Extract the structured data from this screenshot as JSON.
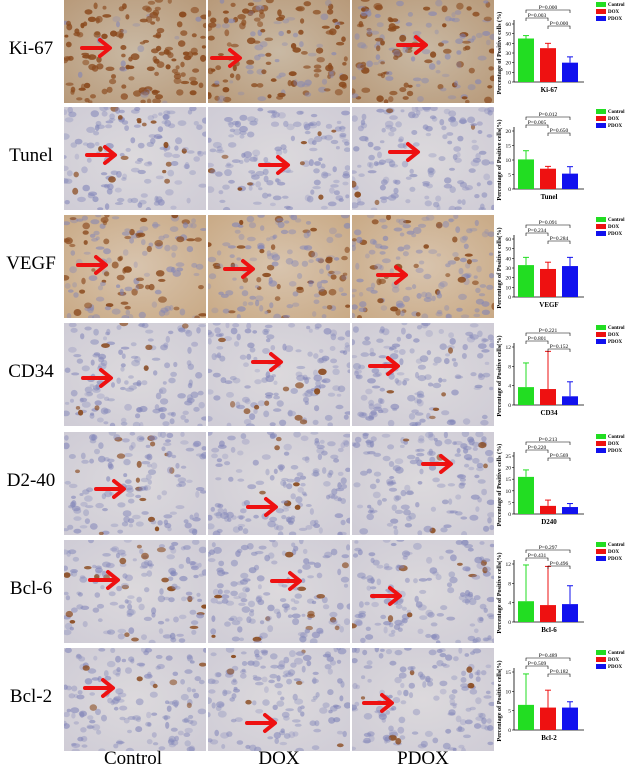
{
  "columns": [
    "Control",
    "DOX",
    "PDOX"
  ],
  "rows": [
    {
      "label": "Ki-67",
      "stain": "strong"
    },
    {
      "label": "Tunel",
      "stain": "light"
    },
    {
      "label": "VEGF",
      "stain": "diffuse"
    },
    {
      "label": "CD34",
      "stain": "light"
    },
    {
      "label": "D2-40",
      "stain": "light"
    },
    {
      "label": "Bcl-6",
      "stain": "light"
    },
    {
      "label": "Bcl-2",
      "stain": "light"
    }
  ],
  "colors": {
    "control": "#22dd22",
    "dox": "#ee1111",
    "pdox": "#1111ee",
    "arrow": "#ee1111",
    "hematoxylin": "#7f83b8",
    "dab": "#8a4a1e"
  },
  "chart_data": [
    {
      "type": "bar",
      "title": "Ki-67",
      "ylabel": "Percentage of Positive cells (%)",
      "categories": [
        "Control",
        "DOX",
        "PDOX"
      ],
      "values": [
        45,
        35,
        20
      ],
      "errors": [
        3,
        5,
        6
      ],
      "ylim": [
        0,
        60
      ],
      "yticks": [
        "0",
        "10",
        "20",
        "30",
        "40",
        "50",
        "60"
      ],
      "legend": [
        "Control",
        "DOX",
        "PDOX"
      ],
      "comparisons": [
        {
          "from": 0,
          "to": 2,
          "label": "P=0.000"
        },
        {
          "from": 0,
          "to": 1,
          "label": "P=0.003"
        },
        {
          "from": 1,
          "to": 2,
          "label": "P=0.000"
        }
      ]
    },
    {
      "type": "bar",
      "title": "Tunel",
      "ylabel": "Percentage of Positive cells(%)",
      "categories": [
        "Control",
        "DOX",
        "PDOX"
      ],
      "values": [
        10.2,
        7.0,
        5.3
      ],
      "errors": [
        3.0,
        0.8,
        2.4
      ],
      "ylim": [
        0,
        20
      ],
      "yticks": [
        "0",
        "5",
        "10",
        "15",
        "20"
      ],
      "legend": [
        "Control",
        "DOX",
        "PDOX"
      ],
      "comparisons": [
        {
          "from": 0,
          "to": 2,
          "label": "P=0.012"
        },
        {
          "from": 0,
          "to": 1,
          "label": "P=0.005"
        },
        {
          "from": 1,
          "to": 2,
          "label": "P=0.650"
        }
      ]
    },
    {
      "type": "bar",
      "title": "VEGF",
      "ylabel": "Percentage of Positive cells(%)",
      "categories": [
        "Control",
        "DOX",
        "PDOX"
      ],
      "values": [
        33,
        29,
        32
      ],
      "errors": [
        8,
        7,
        9
      ],
      "ylim": [
        0,
        60
      ],
      "yticks": [
        "0",
        "10",
        "20",
        "30",
        "40",
        "50",
        "60"
      ],
      "legend": [
        "Control",
        "DOX",
        "PDOX"
      ],
      "comparisons": [
        {
          "from": 0,
          "to": 2,
          "label": "P=0.091"
        },
        {
          "from": 0,
          "to": 1,
          "label": "P=0.234"
        },
        {
          "from": 1,
          "to": 2,
          "label": "P=0.284"
        }
      ]
    },
    {
      "type": "bar",
      "title": "CD34",
      "ylabel": "Percentage of Positive cells(%)",
      "categories": [
        "Control",
        "DOX",
        "PDOX"
      ],
      "values": [
        3.7,
        3.3,
        1.8
      ],
      "errors": [
        5,
        7.8,
        3
      ],
      "ylim": [
        0,
        12
      ],
      "yticks": [
        "0",
        "4",
        "8",
        "12"
      ],
      "legend": [
        "Control",
        "DOX",
        "PDOX"
      ],
      "comparisons": [
        {
          "from": 0,
          "to": 2,
          "label": "P=0.221"
        },
        {
          "from": 0,
          "to": 1,
          "label": "P=0.801"
        },
        {
          "from": 1,
          "to": 2,
          "label": "P=0.152"
        }
      ]
    },
    {
      "type": "bar",
      "title": "D240",
      "ylabel": "Percentage of Positive cells (%)",
      "categories": [
        "Control",
        "DOX",
        "PDOX"
      ],
      "values": [
        16,
        3.5,
        3
      ],
      "errors": [
        3,
        2.5,
        1.5
      ],
      "ylim": [
        0,
        25
      ],
      "yticks": [
        "0",
        "5",
        "10",
        "15",
        "20",
        "25"
      ],
      "legend": [
        "Control",
        "DOX",
        "PDOX"
      ],
      "comparisons": [
        {
          "from": 0,
          "to": 2,
          "label": "P=0.213"
        },
        {
          "from": 0,
          "to": 1,
          "label": "P=0.220"
        },
        {
          "from": 1,
          "to": 2,
          "label": "P=0.569"
        }
      ]
    },
    {
      "type": "bar",
      "title": "Bcl-6",
      "ylabel": "Percentage of Positive cells(%)",
      "categories": [
        "Control",
        "DOX",
        "PDOX"
      ],
      "values": [
        4.3,
        3.5,
        3.7
      ],
      "errors": [
        7.5,
        8,
        3.8
      ],
      "ylim": [
        0,
        12
      ],
      "yticks": [
        "0",
        "4",
        "8",
        "12"
      ],
      "legend": [
        "Control",
        "DOX",
        "PDOX"
      ],
      "comparisons": [
        {
          "from": 0,
          "to": 2,
          "label": "P=0.297"
        },
        {
          "from": 0,
          "to": 1,
          "label": "P=0.431"
        },
        {
          "from": 1,
          "to": 2,
          "label": "P=0.496"
        }
      ]
    },
    {
      "type": "bar",
      "title": "Bcl-2",
      "ylabel": "Percentage of Positive cells(%)",
      "categories": [
        "Control",
        "DOX",
        "PDOX"
      ],
      "values": [
        6.5,
        5.8,
        5.8
      ],
      "errors": [
        8,
        4.5,
        1.5
      ],
      "ylim": [
        0,
        15
      ],
      "yticks": [
        "0",
        "5",
        "10",
        "15"
      ],
      "legend": [
        "Control",
        "DOX",
        "PDOX"
      ],
      "comparisons": [
        {
          "from": 0,
          "to": 2,
          "label": "P=0.489"
        },
        {
          "from": 0,
          "to": 1,
          "label": "P=0.509"
        },
        {
          "from": 1,
          "to": 2,
          "label": "P=0.182"
        }
      ]
    }
  ]
}
